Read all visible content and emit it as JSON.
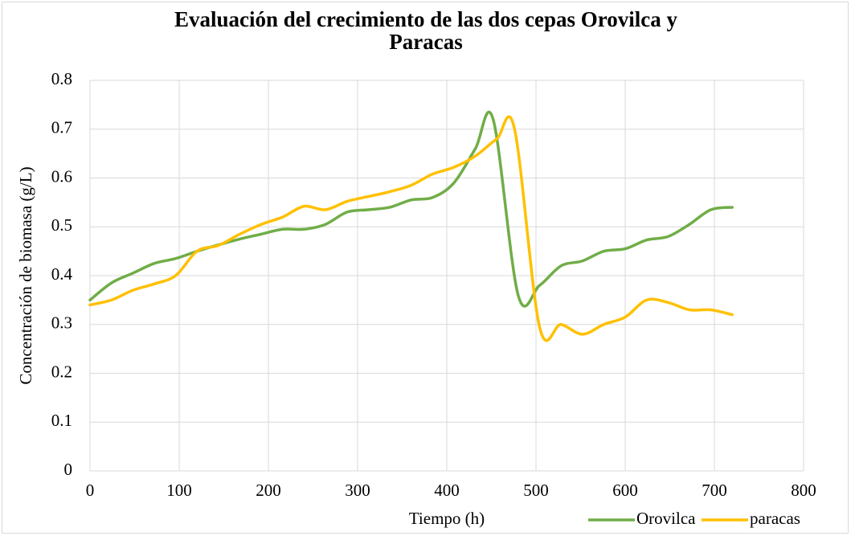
{
  "chart_data": {
    "type": "line",
    "title": "Evaluación del crecimiento de las dos cepas Orovilca y Paracas",
    "x_label": "Tiempo (h)",
    "y_label": "Concentración de biomasa (g/L)",
    "xlim": [
      0,
      800
    ],
    "xticks": [
      0,
      100,
      200,
      300,
      400,
      500,
      600,
      700,
      800
    ],
    "ylim": [
      0,
      0.8
    ],
    "yticks": [
      0,
      0.1,
      0.2,
      0.3,
      0.4,
      0.5,
      0.6,
      0.7,
      0.8
    ],
    "grid": true,
    "smooth": true,
    "legend": "bottom",
    "series": [
      {
        "name": "Orovilca",
        "color": "#70ad47",
        "x": [
          0,
          24,
          48,
          72,
          96,
          120,
          144,
          168,
          192,
          216,
          240,
          264,
          288,
          312,
          336,
          360,
          384,
          408,
          432,
          452,
          480,
          504,
          528,
          552,
          576,
          600,
          624,
          648,
          672,
          696,
          720
        ],
        "values": [
          0.35,
          0.385,
          0.405,
          0.425,
          0.435,
          0.45,
          0.463,
          0.475,
          0.485,
          0.495,
          0.495,
          0.505,
          0.53,
          0.535,
          0.54,
          0.555,
          0.56,
          0.59,
          0.66,
          0.72,
          0.36,
          0.38,
          0.42,
          0.43,
          0.45,
          0.455,
          0.473,
          0.48,
          0.505,
          0.535,
          0.54
        ]
      },
      {
        "name": "paracas",
        "color": "#ffc000",
        "x": [
          0,
          24,
          48,
          72,
          96,
          120,
          144,
          168,
          192,
          216,
          240,
          264,
          288,
          312,
          336,
          360,
          384,
          408,
          432,
          456,
          476,
          504,
          528,
          552,
          576,
          600,
          624,
          648,
          672,
          696,
          720
        ],
        "values": [
          0.34,
          0.35,
          0.37,
          0.383,
          0.4,
          0.45,
          0.462,
          0.485,
          0.505,
          0.52,
          0.542,
          0.535,
          0.552,
          0.562,
          0.572,
          0.585,
          0.608,
          0.622,
          0.645,
          0.68,
          0.7,
          0.295,
          0.3,
          0.28,
          0.3,
          0.315,
          0.35,
          0.345,
          0.33,
          0.33,
          0.32
        ]
      }
    ]
  }
}
